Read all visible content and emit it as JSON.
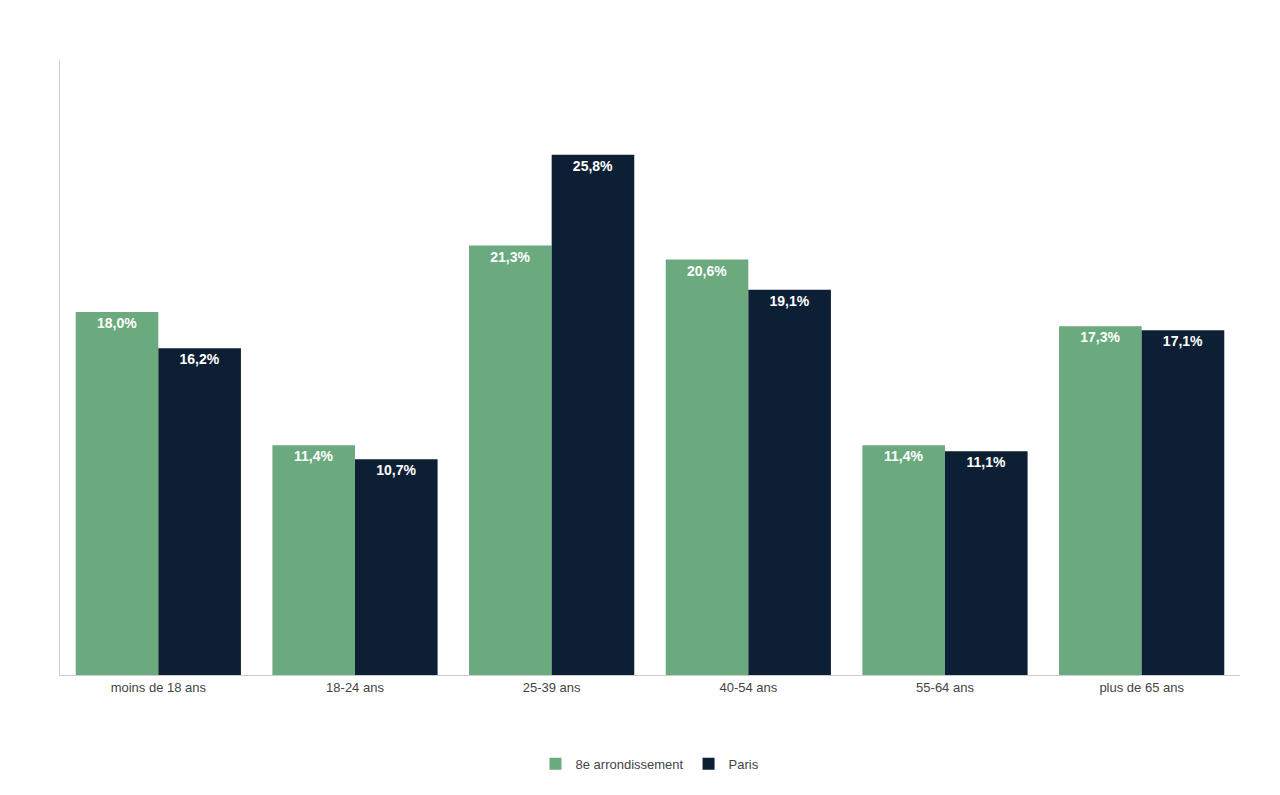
{
  "chart_data": {
    "type": "bar",
    "categories": [
      "moins de 18 ans",
      "18-24 ans",
      "25-39 ans",
      "40-54 ans",
      "55-64 ans",
      "plus de 65 ans"
    ],
    "series": [
      {
        "name": "8e arrondissement",
        "color": "#6aaa7e",
        "values": [
          18.0,
          11.4,
          21.3,
          20.6,
          11.4,
          17.3
        ],
        "value_labels": [
          "18,0%",
          "11,4%",
          "21,3%",
          "20,6%",
          "11,4%",
          "17,3%"
        ]
      },
      {
        "name": "Paris",
        "color": "#0d1f35",
        "values": [
          16.2,
          10.7,
          25.8,
          19.1,
          11.1,
          17.1
        ],
        "value_labels": [
          "16,2%",
          "10,7%",
          "25,8%",
          "19,1%",
          "11,1%",
          "17,1%"
        ]
      }
    ],
    "ylim": [
      0,
      30.5
    ],
    "grid": false,
    "legend": "bottom",
    "data_labels": true,
    "tick_labels": "x"
  }
}
